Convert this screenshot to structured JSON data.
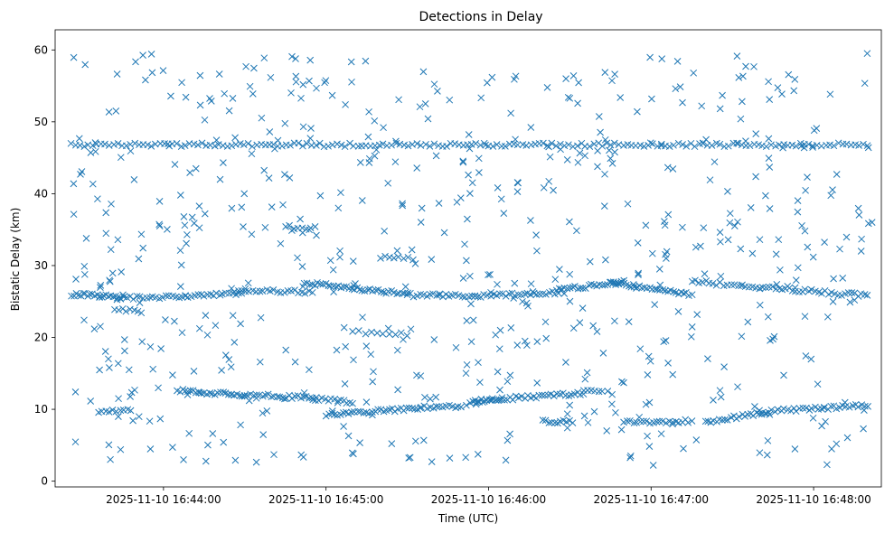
{
  "chart_data": {
    "type": "scatter",
    "title": "Detections in Delay",
    "xlabel": "Time (UTC)",
    "ylabel": "Bistatic Delay (km)",
    "marker": "x",
    "color": "#1f77b4",
    "grid": false,
    "legend": "none",
    "x_axis": {
      "kind": "time",
      "range": [
        "2025-11-10 16:43:20",
        "2025-11-10 16:48:25"
      ],
      "ticks": [
        "2025-11-10 16:44:00",
        "2025-11-10 16:45:00",
        "2025-11-10 16:46:00",
        "2025-11-10 16:47:00",
        "2025-11-10 16:48:00"
      ]
    },
    "y_axis": {
      "range": [
        -0.8,
        62.8
      ],
      "ticks": [
        0,
        10,
        20,
        30,
        40,
        50,
        60
      ]
    },
    "series": [
      {
        "tracks": [
          {
            "start": "2025-11-10 16:43:26",
            "end": "2025-11-10 16:48:20",
            "y_start": 46.8,
            "y_end": 46.8,
            "count": 190
          },
          {
            "start": "2025-11-10 16:43:26",
            "end": "2025-11-10 16:43:44",
            "y_start": 26.0,
            "y_end": 25.6,
            "count": 22
          },
          {
            "start": "2025-11-10 16:43:43",
            "end": "2025-11-10 16:44:08",
            "y_start": 25.5,
            "y_end": 25.6,
            "count": 22
          },
          {
            "start": "2025-11-10 16:44:08",
            "end": "2025-11-10 16:44:30",
            "y_start": 25.6,
            "y_end": 26.2,
            "count": 20
          },
          {
            "start": "2025-11-10 16:44:25",
            "end": "2025-11-10 16:44:55",
            "y_start": 26.6,
            "y_end": 26.3,
            "count": 24
          },
          {
            "start": "2025-11-10 16:44:52",
            "end": "2025-11-10 16:45:30",
            "y_start": 27.6,
            "y_end": 26.0,
            "count": 40
          },
          {
            "start": "2025-11-10 16:45:30",
            "end": "2025-11-10 16:45:55",
            "y_start": 25.9,
            "y_end": 25.8,
            "count": 22
          },
          {
            "start": "2025-11-10 16:45:55",
            "end": "2025-11-10 16:46:28",
            "y_start": 25.8,
            "y_end": 26.3,
            "count": 30
          },
          {
            "start": "2025-11-10 16:46:25",
            "end": "2025-11-10 16:46:50",
            "y_start": 26.6,
            "y_end": 27.7,
            "count": 26
          },
          {
            "start": "2025-11-10 16:46:45",
            "end": "2025-11-10 16:47:15",
            "y_start": 27.6,
            "y_end": 26.0,
            "count": 32
          },
          {
            "start": "2025-11-10 16:47:15",
            "end": "2025-11-10 16:47:40",
            "y_start": 27.8,
            "y_end": 27.0,
            "count": 20
          },
          {
            "start": "2025-11-10 16:47:40",
            "end": "2025-11-10 16:48:20",
            "y_start": 27.0,
            "y_end": 25.8,
            "count": 34
          },
          {
            "start": "2025-11-10 16:43:36",
            "end": "2025-11-10 16:43:48",
            "y_start": 9.6,
            "y_end": 10.0,
            "count": 10
          },
          {
            "start": "2025-11-10 16:44:05",
            "end": "2025-11-10 16:44:30",
            "y_start": 12.6,
            "y_end": 12.0,
            "count": 26
          },
          {
            "start": "2025-11-10 16:44:30",
            "end": "2025-11-10 16:44:55",
            "y_start": 12.0,
            "y_end": 11.6,
            "count": 24
          },
          {
            "start": "2025-11-10 16:44:55",
            "end": "2025-11-10 16:45:10",
            "y_start": 11.5,
            "y_end": 11.0,
            "count": 14
          },
          {
            "start": "2025-11-10 16:45:00",
            "end": "2025-11-10 16:45:35",
            "y_start": 9.2,
            "y_end": 10.2,
            "count": 34
          },
          {
            "start": "2025-11-10 16:45:35",
            "end": "2025-11-10 16:45:50",
            "y_start": 10.2,
            "y_end": 10.5,
            "count": 14
          },
          {
            "start": "2025-11-10 16:45:52",
            "end": "2025-11-10 16:46:05",
            "y_start": 10.8,
            "y_end": 11.4,
            "count": 12
          },
          {
            "start": "2025-11-10 16:45:55",
            "end": "2025-11-10 16:46:35",
            "y_start": 11.2,
            "y_end": 12.2,
            "count": 38
          },
          {
            "start": "2025-11-10 16:46:20",
            "end": "2025-11-10 16:46:30",
            "y_start": 8.4,
            "y_end": 8.2,
            "count": 10
          },
          {
            "start": "2025-11-10 16:46:35",
            "end": "2025-11-10 16:46:42",
            "y_start": 12.4,
            "y_end": 12.4,
            "count": 6
          },
          {
            "start": "2025-11-10 16:46:50",
            "end": "2025-11-10 16:47:15",
            "y_start": 8.2,
            "y_end": 8.4,
            "count": 22
          },
          {
            "start": "2025-11-10 16:47:20",
            "end": "2025-11-10 16:47:42",
            "y_start": 8.2,
            "y_end": 9.6,
            "count": 22
          },
          {
            "start": "2025-11-10 16:47:40",
            "end": "2025-11-10 16:48:20",
            "y_start": 9.6,
            "y_end": 10.6,
            "count": 36
          },
          {
            "start": "2025-11-10 16:44:45",
            "end": "2025-11-10 16:44:56",
            "y_start": 35.4,
            "y_end": 35.2,
            "count": 8
          },
          {
            "start": "2025-11-10 16:43:42",
            "end": "2025-11-10 16:43:52",
            "y_start": 23.8,
            "y_end": 23.6,
            "count": 8
          },
          {
            "start": "2025-11-10 16:45:20",
            "end": "2025-11-10 16:45:32",
            "y_start": 31.2,
            "y_end": 31.0,
            "count": 8
          },
          {
            "start": "2025-11-10 16:45:10",
            "end": "2025-11-10 16:45:30",
            "y_start": 20.8,
            "y_end": 20.4,
            "count": 10
          }
        ],
        "noise": {
          "start": "2025-11-10 16:43:25",
          "end": "2025-11-10 16:48:22",
          "y_min": 1.5,
          "y_max": 59.8,
          "count": 620
        }
      }
    ]
  }
}
